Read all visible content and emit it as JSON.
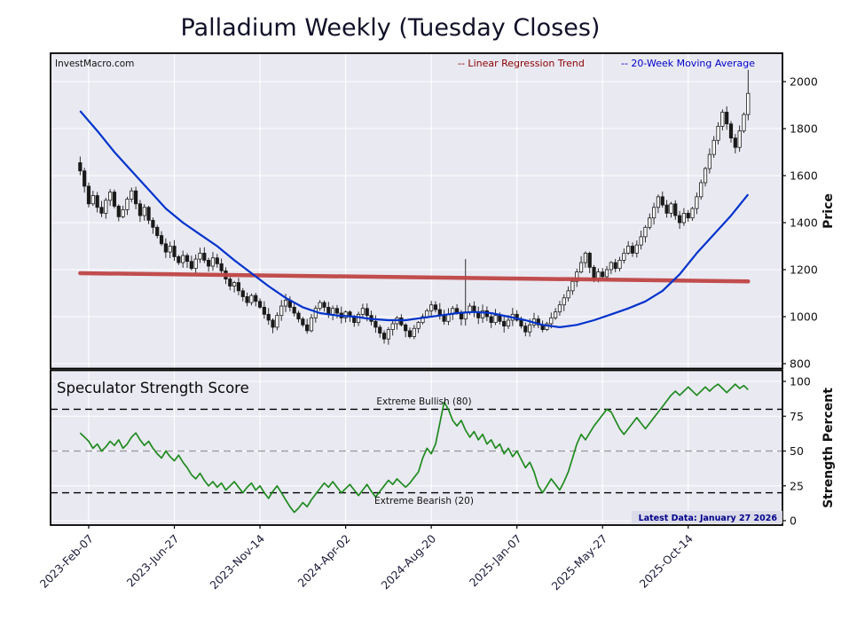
{
  "title": "Palladium Weekly (Tuesday Closes)",
  "watermark": "InvestMacro.com",
  "legend": [
    {
      "label": "-- Linear Regression Trend",
      "color": "#8b0000"
    },
    {
      "label": "-- 20-Week Moving Average",
      "color": "#0000cd"
    }
  ],
  "price_axis": {
    "label": "Price",
    "ticks": [
      800,
      1000,
      1200,
      1400,
      1600,
      1800,
      2000
    ]
  },
  "strength_axis": {
    "label": "Strength Percent",
    "ticks": [
      0,
      25,
      50,
      75,
      100
    ]
  },
  "annotations": {
    "bullish": "Extreme Bullish (80)",
    "bearish": "Extreme Bearish (20)",
    "latest": "Latest Data: January 27 2026"
  },
  "colors": {
    "panel_bg": "#e9e9f2",
    "grid": "#ffffff",
    "candle_up": "#ffffff",
    "candle_down": "#1a1a1a",
    "regression": "#bf4545",
    "ma": "#0033cc",
    "strength": "#1f8b1f",
    "threshold_extreme": "#000000",
    "threshold_mid": "#999999",
    "tick_label": "#111111",
    "date_label": "#1a1a3a"
  },
  "chart_data": {
    "type": "candlestick",
    "frequency": "weekly",
    "weeks_total": 157,
    "x_tick_weeks": [
      2,
      22,
      42,
      62,
      82,
      102,
      122,
      142
    ],
    "x_tick_labels": [
      "2023-Feb-07",
      "2023-Jun-27",
      "2023-Nov-14",
      "2024-Apr-02",
      "2024-Aug-20",
      "2025-Jan-07",
      "2025-May-27",
      "2025-Oct-14"
    ],
    "price_panel": {
      "ylim": [
        800,
        2120
      ],
      "yticks": [
        800,
        1000,
        1200,
        1400,
        1600,
        1800,
        2000
      ],
      "first_open": 1655,
      "closes": [
        1620,
        1555,
        1480,
        1515,
        1465,
        1440,
        1495,
        1530,
        1470,
        1425,
        1455,
        1500,
        1535,
        1480,
        1430,
        1465,
        1410,
        1380,
        1345,
        1310,
        1275,
        1300,
        1255,
        1230,
        1260,
        1235,
        1205,
        1245,
        1270,
        1240,
        1215,
        1250,
        1225,
        1195,
        1160,
        1130,
        1145,
        1110,
        1085,
        1060,
        1090,
        1065,
        1040,
        1010,
        985,
        955,
        1005,
        1045,
        1070,
        1040,
        1015,
        990,
        965,
        940,
        995,
        1035,
        1060,
        1040,
        1010,
        1035,
        1015,
        995,
        1020,
        1000,
        975,
        1010,
        1035,
        1005,
        980,
        955,
        930,
        905,
        945,
        970,
        995,
        965,
        940,
        915,
        950,
        975,
        1000,
        1025,
        1050,
        1030,
        1005,
        980,
        1010,
        1035,
        1015,
        990,
        1020,
        1045,
        1020,
        995,
        1025,
        1000,
        975,
        1005,
        980,
        960,
        985,
        1010,
        985,
        960,
        935,
        965,
        990,
        965,
        945,
        970,
        995,
        1020,
        1050,
        1080,
        1110,
        1150,
        1190,
        1230,
        1270,
        1210,
        1160,
        1190,
        1170,
        1200,
        1230,
        1205,
        1240,
        1270,
        1300,
        1270,
        1305,
        1340,
        1380,
        1420,
        1465,
        1510,
        1475,
        1440,
        1480,
        1430,
        1400,
        1440,
        1420,
        1460,
        1510,
        1570,
        1630,
        1690,
        1750,
        1810,
        1870,
        1820,
        1760,
        1720,
        1790,
        1860,
        1950
      ],
      "spike_highs": {
        "90": 1245,
        "156": 2050
      },
      "regression": {
        "name": "Linear Regression Trend",
        "start": 1185,
        "end": 1150
      },
      "ma20": {
        "name": "20-Week Moving Average",
        "anchor_weeks": [
          0,
          4,
          8,
          12,
          16,
          20,
          24,
          28,
          32,
          36,
          40,
          44,
          48,
          52,
          56,
          60,
          64,
          68,
          72,
          76,
          80,
          84,
          88,
          92,
          96,
          100,
          104,
          108,
          112,
          116,
          120,
          124,
          128,
          132,
          136,
          140,
          144,
          148,
          152,
          156
        ],
        "anchor_values": [
          1875,
          1790,
          1700,
          1620,
          1540,
          1460,
          1400,
          1350,
          1300,
          1240,
          1185,
          1130,
          1080,
          1040,
          1015,
          1005,
          1000,
          990,
          985,
          985,
          995,
          1005,
          1015,
          1020,
          1015,
          1000,
          985,
          965,
          955,
          965,
          985,
          1010,
          1035,
          1065,
          1110,
          1180,
          1270,
          1350,
          1430,
          1520
        ]
      }
    },
    "strength_panel": {
      "title": "Speculator Strength Score",
      "ylim": [
        0,
        100
      ],
      "yticks": [
        0,
        25,
        50,
        75,
        100
      ],
      "thresholds": {
        "extreme_bullish": 80,
        "midline": 50,
        "extreme_bearish": 20
      },
      "values": [
        63,
        60,
        57,
        52,
        55,
        50,
        53,
        57,
        54,
        58,
        52,
        55,
        60,
        63,
        58,
        54,
        57,
        52,
        48,
        45,
        50,
        46,
        43,
        47,
        42,
        38,
        33,
        30,
        34,
        29,
        25,
        28,
        24,
        27,
        22,
        25,
        28,
        24,
        20,
        24,
        27,
        22,
        25,
        20,
        16,
        21,
        25,
        20,
        15,
        10,
        6,
        9,
        13,
        10,
        15,
        19,
        23,
        27,
        24,
        28,
        24,
        20,
        23,
        26,
        22,
        18,
        22,
        26,
        21,
        17,
        21,
        25,
        29,
        26,
        30,
        27,
        24,
        27,
        31,
        35,
        45,
        52,
        48,
        55,
        70,
        85,
        80,
        72,
        68,
        72,
        65,
        60,
        64,
        58,
        62,
        55,
        58,
        52,
        55,
        48,
        52,
        46,
        50,
        44,
        38,
        42,
        35,
        25,
        20,
        25,
        30,
        26,
        22,
        28,
        35,
        45,
        55,
        62,
        58,
        63,
        68,
        72,
        76,
        80,
        78,
        72,
        66,
        62,
        66,
        70,
        74,
        70,
        66,
        70,
        74,
        78,
        82,
        86,
        90,
        93,
        90,
        93,
        96,
        93,
        90,
        93,
        96,
        93,
        96,
        98,
        95,
        92,
        95,
        98,
        95,
        97,
        94
      ]
    }
  }
}
